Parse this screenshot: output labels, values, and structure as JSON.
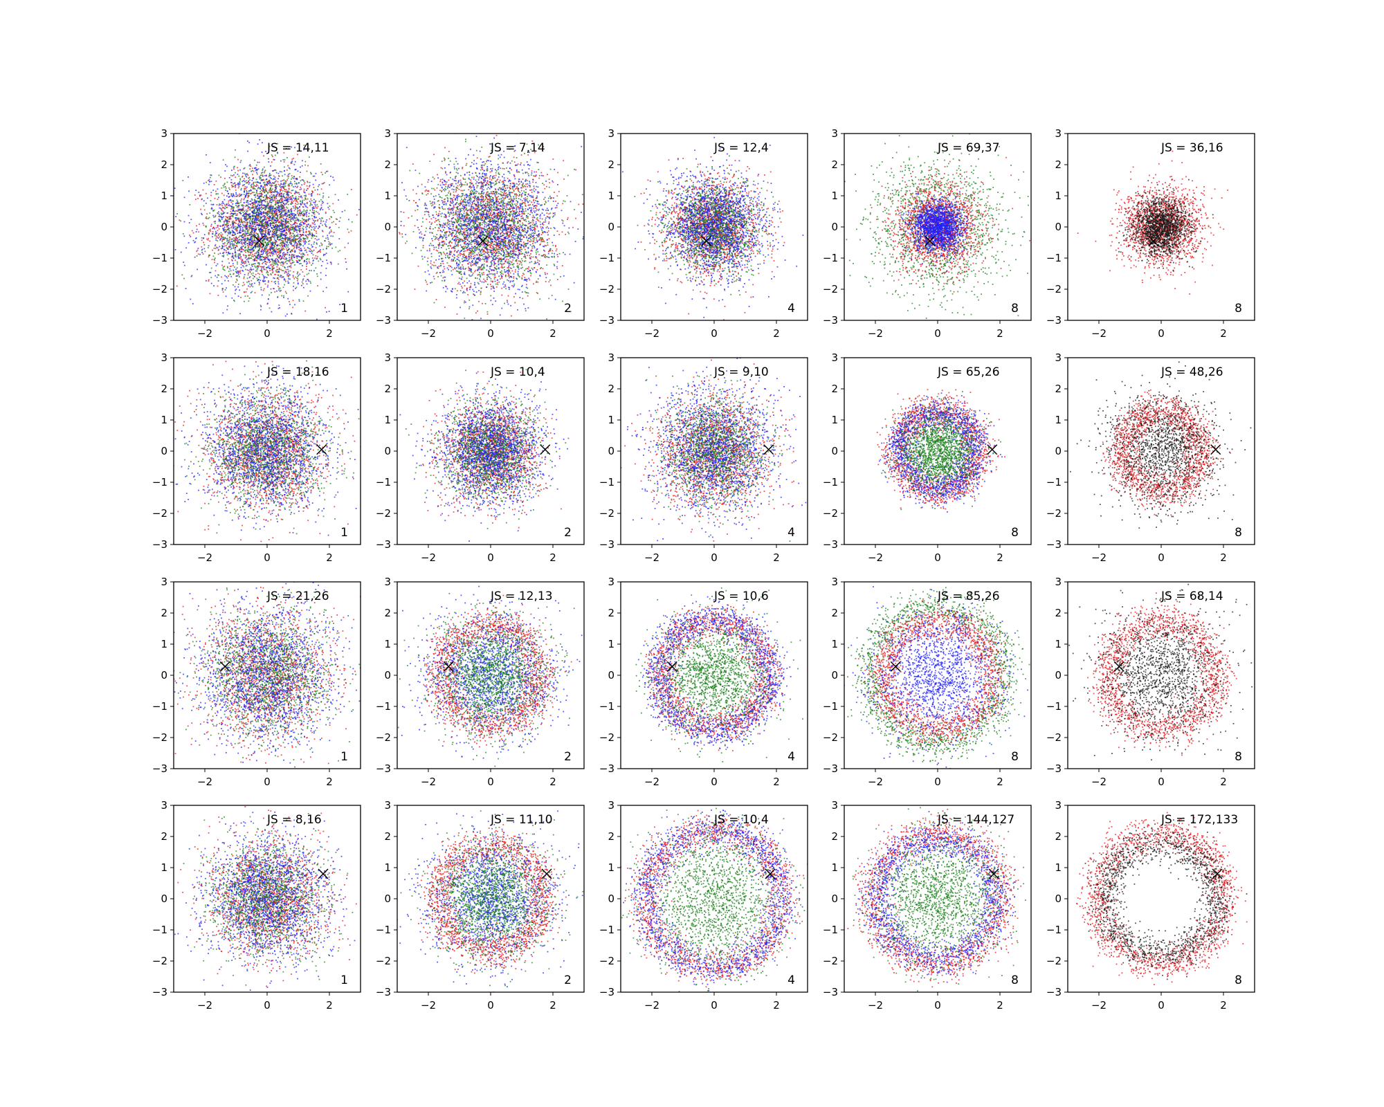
{
  "chart_data": {
    "type": "scatter",
    "layout": {
      "rows": 4,
      "cols": 5
    },
    "xlim": [
      -3,
      3
    ],
    "ylim": [
      -3,
      3
    ],
    "xticks": [
      -2,
      0,
      2
    ],
    "yticks": [
      -3,
      -2,
      -1,
      0,
      1,
      2,
      3
    ],
    "tick_labels_x": [
      "−2",
      "0",
      "2"
    ],
    "tick_labels_y": [
      "−3",
      "−2",
      "−1",
      "0",
      "1",
      "2",
      "3"
    ],
    "grid": false,
    "legend": "none",
    "colors": {
      "red": "#e8141a",
      "green": "#1a801a",
      "blue": "#1f1fff",
      "black": "#1a1a1a"
    },
    "marker": "x",
    "marker_color": "#000000",
    "description_of_marks": "Each subplot is a dense scatter of ~5000 points per color group; color groups cluster as discs or rings of varying radius.",
    "panels": [
      {
        "row": 0,
        "col": 0,
        "js_label": "JS = 14,11",
        "corner_label": "1",
        "marker_xy": [
          -0.25,
          -0.45
        ],
        "series": [
          {
            "color": "red",
            "pattern": "disc",
            "r": 0.9
          },
          {
            "color": "green",
            "pattern": "disc",
            "r": 0.9
          },
          {
            "color": "blue",
            "pattern": "disc",
            "r": 1.0
          }
        ]
      },
      {
        "row": 0,
        "col": 1,
        "js_label": "JS = 7,14",
        "corner_label": "2",
        "marker_xy": [
          -0.25,
          -0.45
        ],
        "series": [
          {
            "color": "red",
            "pattern": "disc",
            "r": 1.0
          },
          {
            "color": "green",
            "pattern": "disc",
            "r": 0.95
          },
          {
            "color": "blue",
            "pattern": "disc",
            "r": 1.05
          }
        ]
      },
      {
        "row": 0,
        "col": 2,
        "js_label": "JS = 12,4",
        "corner_label": "4",
        "marker_xy": [
          -0.25,
          -0.45
        ],
        "series": [
          {
            "color": "red",
            "pattern": "disc",
            "r": 0.75
          },
          {
            "color": "green",
            "pattern": "disc",
            "r": 0.7
          },
          {
            "color": "blue",
            "pattern": "disc",
            "r": 0.85
          }
        ]
      },
      {
        "row": 0,
        "col": 3,
        "js_label": "JS = 69,37",
        "corner_label": "8",
        "marker_xy": [
          -0.25,
          -0.45
        ],
        "series": [
          {
            "color": "green",
            "pattern": "disc",
            "r": 1.05
          },
          {
            "color": "red",
            "pattern": "disc",
            "r": 0.7
          },
          {
            "color": "blue",
            "pattern": "disc",
            "r": 0.4
          }
        ]
      },
      {
        "row": 0,
        "col": 4,
        "js_label": "JS = 36,16",
        "corner_label": "8",
        "marker_xy": [
          -0.25,
          -0.45
        ],
        "series": [
          {
            "color": "red",
            "pattern": "disc",
            "r": 0.65
          },
          {
            "color": "black",
            "pattern": "disc",
            "r": 0.45
          }
        ]
      },
      {
        "row": 1,
        "col": 0,
        "js_label": "JS = 18,16",
        "corner_label": "1",
        "marker_xy": [
          1.75,
          0.05
        ],
        "series": [
          {
            "color": "red",
            "pattern": "disc",
            "r": 0.95
          },
          {
            "color": "green",
            "pattern": "disc",
            "r": 0.9
          },
          {
            "color": "blue",
            "pattern": "disc",
            "r": 1.0
          }
        ]
      },
      {
        "row": 1,
        "col": 1,
        "js_label": "JS = 10,4",
        "corner_label": "2",
        "marker_xy": [
          1.75,
          0.05
        ],
        "series": [
          {
            "color": "red",
            "pattern": "disc",
            "r": 0.8
          },
          {
            "color": "green",
            "pattern": "disc",
            "r": 0.75
          },
          {
            "color": "blue",
            "pattern": "disc",
            "r": 0.85
          }
        ]
      },
      {
        "row": 1,
        "col": 2,
        "js_label": "JS = 9,10",
        "corner_label": "4",
        "marker_xy": [
          1.75,
          0.05
        ],
        "series": [
          {
            "color": "red",
            "pattern": "disc",
            "r": 0.9
          },
          {
            "color": "green",
            "pattern": "disc",
            "r": 0.8
          },
          {
            "color": "blue",
            "pattern": "disc",
            "r": 1.0
          }
        ]
      },
      {
        "row": 1,
        "col": 3,
        "js_label": "JS = 65,26",
        "corner_label": "8",
        "marker_xy": [
          1.75,
          0.05
        ],
        "series": [
          {
            "color": "red",
            "pattern": "ring",
            "r": 1.3
          },
          {
            "color": "blue",
            "pattern": "ring",
            "r": 1.2
          },
          {
            "color": "green",
            "pattern": "disc",
            "r": 0.6
          }
        ]
      },
      {
        "row": 1,
        "col": 4,
        "js_label": "JS = 48,26",
        "corner_label": "8",
        "marker_xy": [
          1.75,
          0.05
        ],
        "series": [
          {
            "color": "red",
            "pattern": "ring",
            "r": 1.3
          },
          {
            "color": "black",
            "pattern": "disc",
            "r": 0.9
          }
        ]
      },
      {
        "row": 2,
        "col": 0,
        "js_label": "JS = 21,26",
        "corner_label": "1",
        "marker_xy": [
          -1.35,
          0.28
        ],
        "series": [
          {
            "color": "red",
            "pattern": "disc",
            "r": 1.05
          },
          {
            "color": "green",
            "pattern": "disc",
            "r": 1.0
          },
          {
            "color": "blue",
            "pattern": "disc",
            "r": 1.1
          }
        ]
      },
      {
        "row": 2,
        "col": 1,
        "js_label": "JS = 12,13",
        "corner_label": "2",
        "marker_xy": [
          -1.35,
          0.28
        ],
        "series": [
          {
            "color": "red",
            "pattern": "ring",
            "r": 1.6
          },
          {
            "color": "blue",
            "pattern": "disc",
            "r": 1.0
          },
          {
            "color": "green",
            "pattern": "disc",
            "r": 0.9
          }
        ]
      },
      {
        "row": 2,
        "col": 2,
        "js_label": "JS = 10,6",
        "corner_label": "4",
        "marker_xy": [
          -1.35,
          0.28
        ],
        "series": [
          {
            "color": "red",
            "pattern": "ring",
            "r": 1.7
          },
          {
            "color": "blue",
            "pattern": "ring",
            "r": 1.8
          },
          {
            "color": "green",
            "pattern": "disc",
            "r": 0.9
          }
        ]
      },
      {
        "row": 2,
        "col": 3,
        "js_label": "JS = 85,26",
        "corner_label": "8",
        "marker_xy": [
          -1.35,
          0.28
        ],
        "series": [
          {
            "color": "green",
            "pattern": "ring",
            "r": 2.2
          },
          {
            "color": "red",
            "pattern": "ring",
            "r": 1.75
          },
          {
            "color": "blue",
            "pattern": "disc",
            "r": 1.0
          }
        ]
      },
      {
        "row": 2,
        "col": 4,
        "js_label": "JS = 68,14",
        "corner_label": "8",
        "marker_xy": [
          -1.35,
          0.28
        ],
        "series": [
          {
            "color": "red",
            "pattern": "ring",
            "r": 1.75
          },
          {
            "color": "black",
            "pattern": "disc",
            "r": 1.0
          }
        ]
      },
      {
        "row": 3,
        "col": 0,
        "js_label": "JS = 8,16",
        "corner_label": "1",
        "marker_xy": [
          1.8,
          0.8
        ],
        "series": [
          {
            "color": "red",
            "pattern": "disc",
            "r": 0.95
          },
          {
            "color": "green",
            "pattern": "disc",
            "r": 0.9
          },
          {
            "color": "blue",
            "pattern": "disc",
            "r": 1.0
          }
        ]
      },
      {
        "row": 3,
        "col": 1,
        "js_label": "JS = 11,10",
        "corner_label": "2",
        "marker_xy": [
          1.8,
          0.8
        ],
        "series": [
          {
            "color": "red",
            "pattern": "ring",
            "r": 1.7
          },
          {
            "color": "blue",
            "pattern": "disc",
            "r": 1.0
          },
          {
            "color": "green",
            "pattern": "disc",
            "r": 0.9
          }
        ]
      },
      {
        "row": 3,
        "col": 2,
        "js_label": "JS = 10,4",
        "corner_label": "4",
        "marker_xy": [
          1.8,
          0.8
        ],
        "series": [
          {
            "color": "red",
            "pattern": "ring",
            "r": 2.2
          },
          {
            "color": "blue",
            "pattern": "ring",
            "r": 2.2
          },
          {
            "color": "green",
            "pattern": "disc",
            "r": 1.1
          }
        ]
      },
      {
        "row": 3,
        "col": 3,
        "js_label": "JS = 144,127",
        "corner_label": "8",
        "marker_xy": [
          1.8,
          0.8
        ],
        "series": [
          {
            "color": "red",
            "pattern": "ring",
            "r": 2.1
          },
          {
            "color": "blue",
            "pattern": "ring",
            "r": 1.9
          },
          {
            "color": "green",
            "pattern": "disc",
            "r": 1.0
          }
        ]
      },
      {
        "row": 3,
        "col": 4,
        "js_label": "JS = 172,133",
        "corner_label": "8",
        "marker_xy": [
          1.8,
          0.8
        ],
        "series": [
          {
            "color": "red",
            "pattern": "ring",
            "r": 2.1
          },
          {
            "color": "black",
            "pattern": "ring",
            "r": 1.8
          }
        ]
      }
    ]
  }
}
